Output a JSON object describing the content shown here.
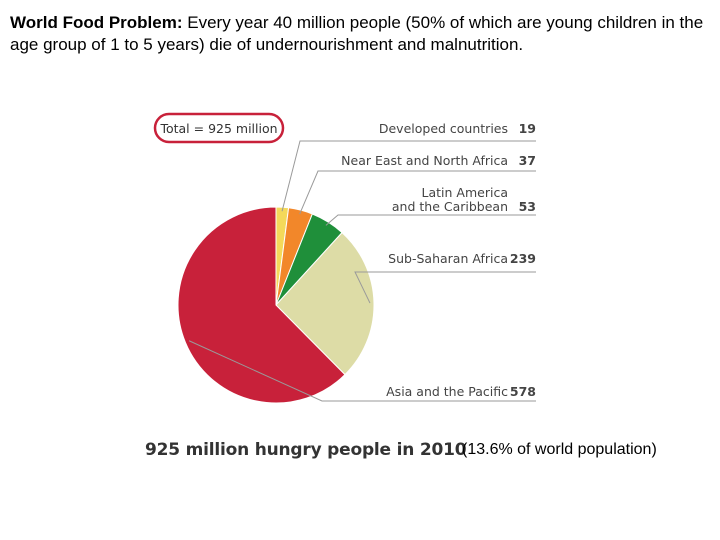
{
  "header": {
    "title_bold": "World Food Problem:",
    "title_rest": " Every year 40 million people (50% of which are young children in the age group of 1 to 5 years) die of undernourishment and malnutrition."
  },
  "caption": {
    "main": "925 million hungry people in 2010",
    "extra": "(13.6% of world population)"
  },
  "chart_data": {
    "type": "pie",
    "total_label": "Total = 925 million",
    "total": 925,
    "slices": [
      {
        "label": [
          "Developed countries"
        ],
        "value": 19,
        "color": "#f4d95a"
      },
      {
        "label": [
          "Near East and North Africa"
        ],
        "value": 37,
        "color": "#f2872a"
      },
      {
        "label": [
          "Latin America",
          "and the Caribbean"
        ],
        "value": 53,
        "color": "#1f8f3a"
      },
      {
        "label": [
          "Sub-Saharan Africa"
        ],
        "value": 239,
        "color": "#dddca6"
      },
      {
        "label": [
          "Asia and the Pacific"
        ],
        "value": 578,
        "color": "#c8213a"
      }
    ]
  }
}
